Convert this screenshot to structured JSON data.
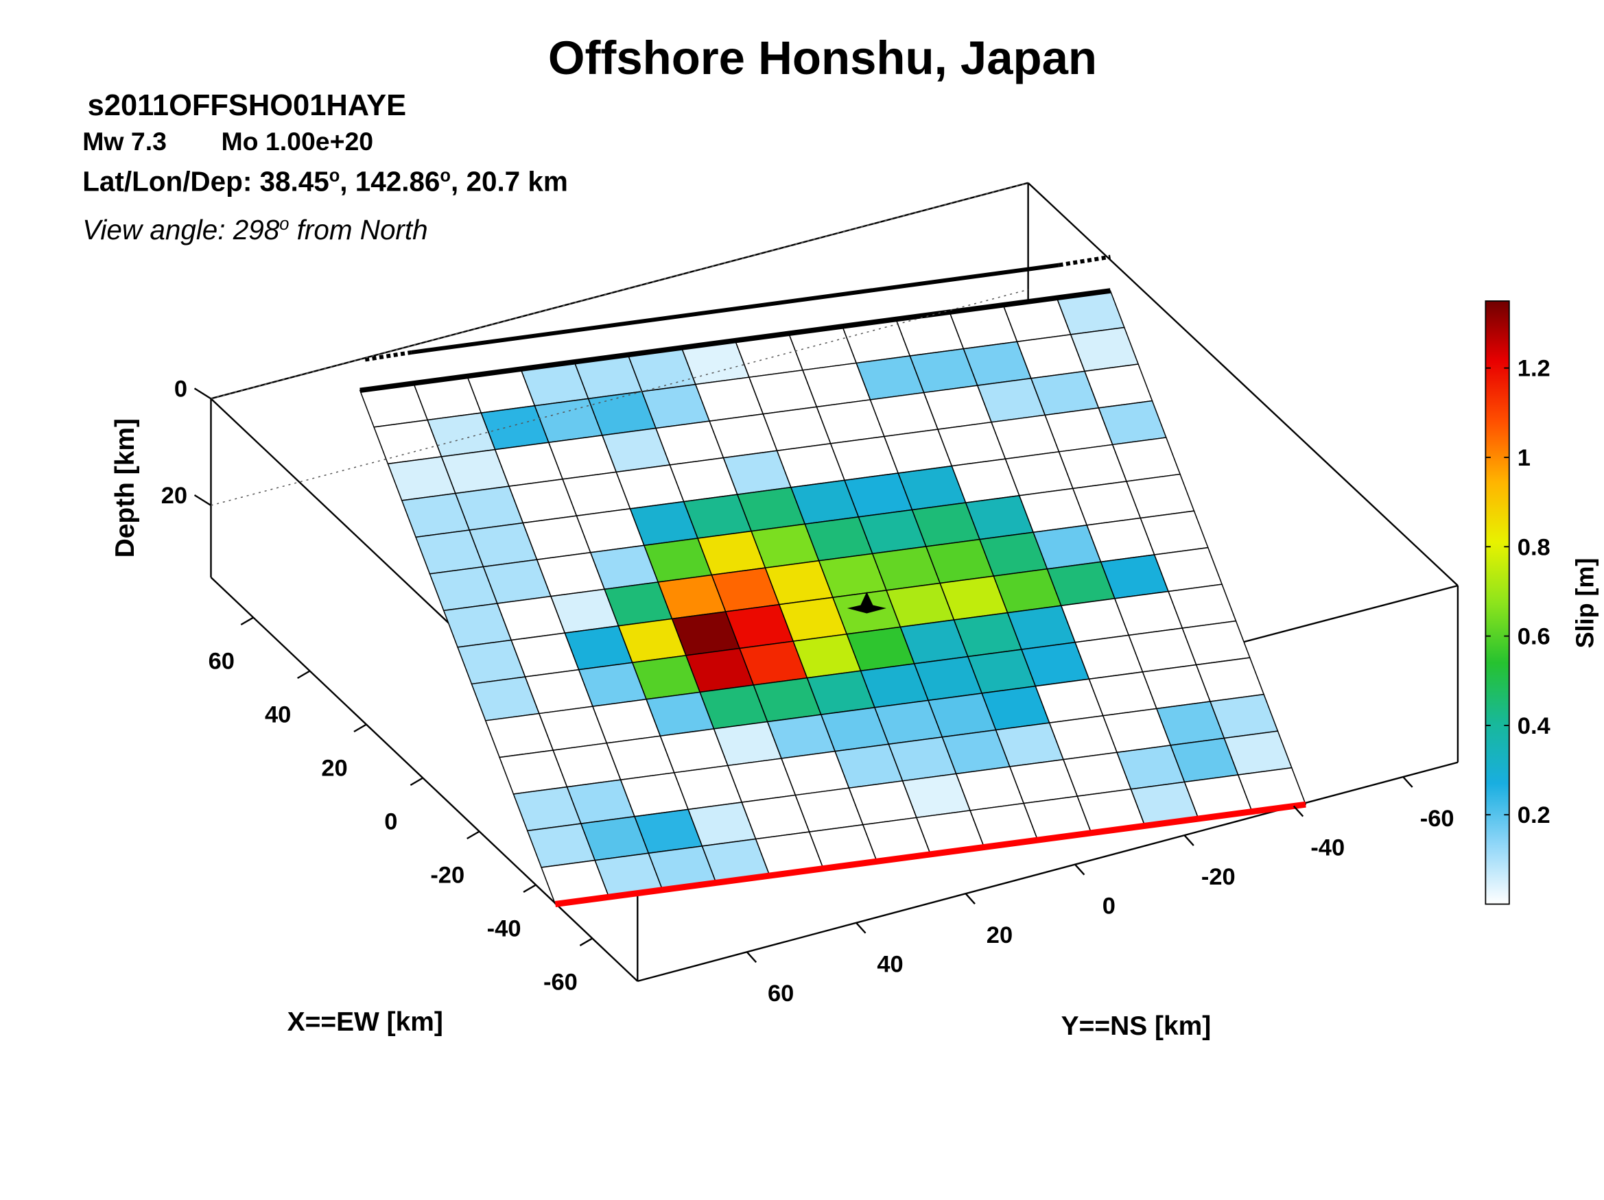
{
  "chart_data": {
    "type": "fault-slip-3d",
    "title": "Offshore Honshu, Japan",
    "event_id": "s2011OFFSHO01HAYE",
    "magnitude": "Mw 7.3",
    "moment": "Mo 1.00e+20",
    "location_parts": [
      "Lat/Lon/Dep: 38.45",
      "o",
      ", 142.86",
      "o",
      ", 20.7 km"
    ],
    "view_parts": [
      "View angle: 298",
      "o",
      " from North"
    ],
    "x_label": "X==EW [km]",
    "y_label": "Y==NS [km]",
    "z_label": "Depth [km]",
    "colorbar_label": "Slip [m]",
    "xlim": [
      -76,
      75
    ],
    "xticks": [
      -60,
      -40,
      -20,
      0,
      20,
      40,
      60
    ],
    "ylim": [
      -70,
      80
    ],
    "yticks": [
      -60,
      -40,
      -20,
      0,
      20,
      40,
      60
    ],
    "zlim": [
      0,
      33.5
    ],
    "zticks": [
      0,
      20
    ],
    "clim": [
      0,
      1.35
    ],
    "cticks": [
      0.2,
      0.4,
      0.6,
      0.8,
      1,
      1.2
    ],
    "colormap": [
      "#ffffff",
      "#8fd6f8",
      "#19aee0",
      "#18b89a",
      "#26c230",
      "#8ee41c",
      "#e8f200",
      "#ffb400",
      "#ff5000",
      "#e80000",
      "#700000"
    ],
    "slip": [
      [
        0,
        0,
        0,
        0.1,
        0.1,
        0.1,
        0.04,
        0,
        0,
        0,
        0,
        0,
        0,
        0.08
      ],
      [
        0,
        0.07,
        0.25,
        0.18,
        0.22,
        0.13,
        0,
        0,
        0,
        0.17,
        0.17,
        0.16,
        0,
        0.05
      ],
      [
        0.05,
        0.05,
        0,
        0,
        0.08,
        0,
        0,
        0,
        0,
        0,
        0,
        0.1,
        0.12,
        0
      ],
      [
        0.1,
        0.1,
        0,
        0,
        0,
        0,
        0.1,
        0,
        0,
        0,
        0,
        0,
        0,
        0.12
      ],
      [
        0.1,
        0.1,
        0,
        0,
        0.3,
        0.42,
        0.45,
        0.3,
        0.28,
        0.3,
        0,
        0,
        0,
        0
      ],
      [
        0.1,
        0.1,
        0,
        0.12,
        0.6,
        0.85,
        0.65,
        0.45,
        0.4,
        0.45,
        0.35,
        0,
        0,
        0
      ],
      [
        0.1,
        0,
        0.05,
        0.45,
        1.0,
        1.05,
        0.85,
        0.65,
        0.62,
        0.6,
        0.45,
        0.18,
        0,
        0
      ],
      [
        0.1,
        0,
        0.28,
        0.85,
        1.33,
        1.2,
        0.85,
        0.65,
        0.72,
        0.75,
        0.6,
        0.45,
        0.28,
        0
      ],
      [
        0.1,
        0,
        0.17,
        0.6,
        1.25,
        1.15,
        0.75,
        0.55,
        0.33,
        0.4,
        0.3,
        0,
        0,
        0
      ],
      [
        0,
        0,
        0,
        0.18,
        0.45,
        0.45,
        0.4,
        0.3,
        0.3,
        0.35,
        0.28,
        0,
        0,
        0
      ],
      [
        0,
        0,
        0,
        0,
        0.05,
        0.15,
        0.18,
        0.18,
        0.2,
        0.28,
        0,
        0,
        0,
        0
      ],
      [
        0.1,
        0.12,
        0,
        0,
        0,
        0,
        0.12,
        0.12,
        0.16,
        0.1,
        0,
        0,
        0.17,
        0.1
      ],
      [
        0.1,
        0.2,
        0.25,
        0.06,
        0,
        0,
        0,
        0.04,
        0,
        0,
        0,
        0.12,
        0.18,
        0.06
      ],
      [
        0,
        0.1,
        0.12,
        0.1,
        0,
        0,
        0,
        0,
        0,
        0,
        0,
        0.08,
        0,
        0
      ]
    ]
  }
}
